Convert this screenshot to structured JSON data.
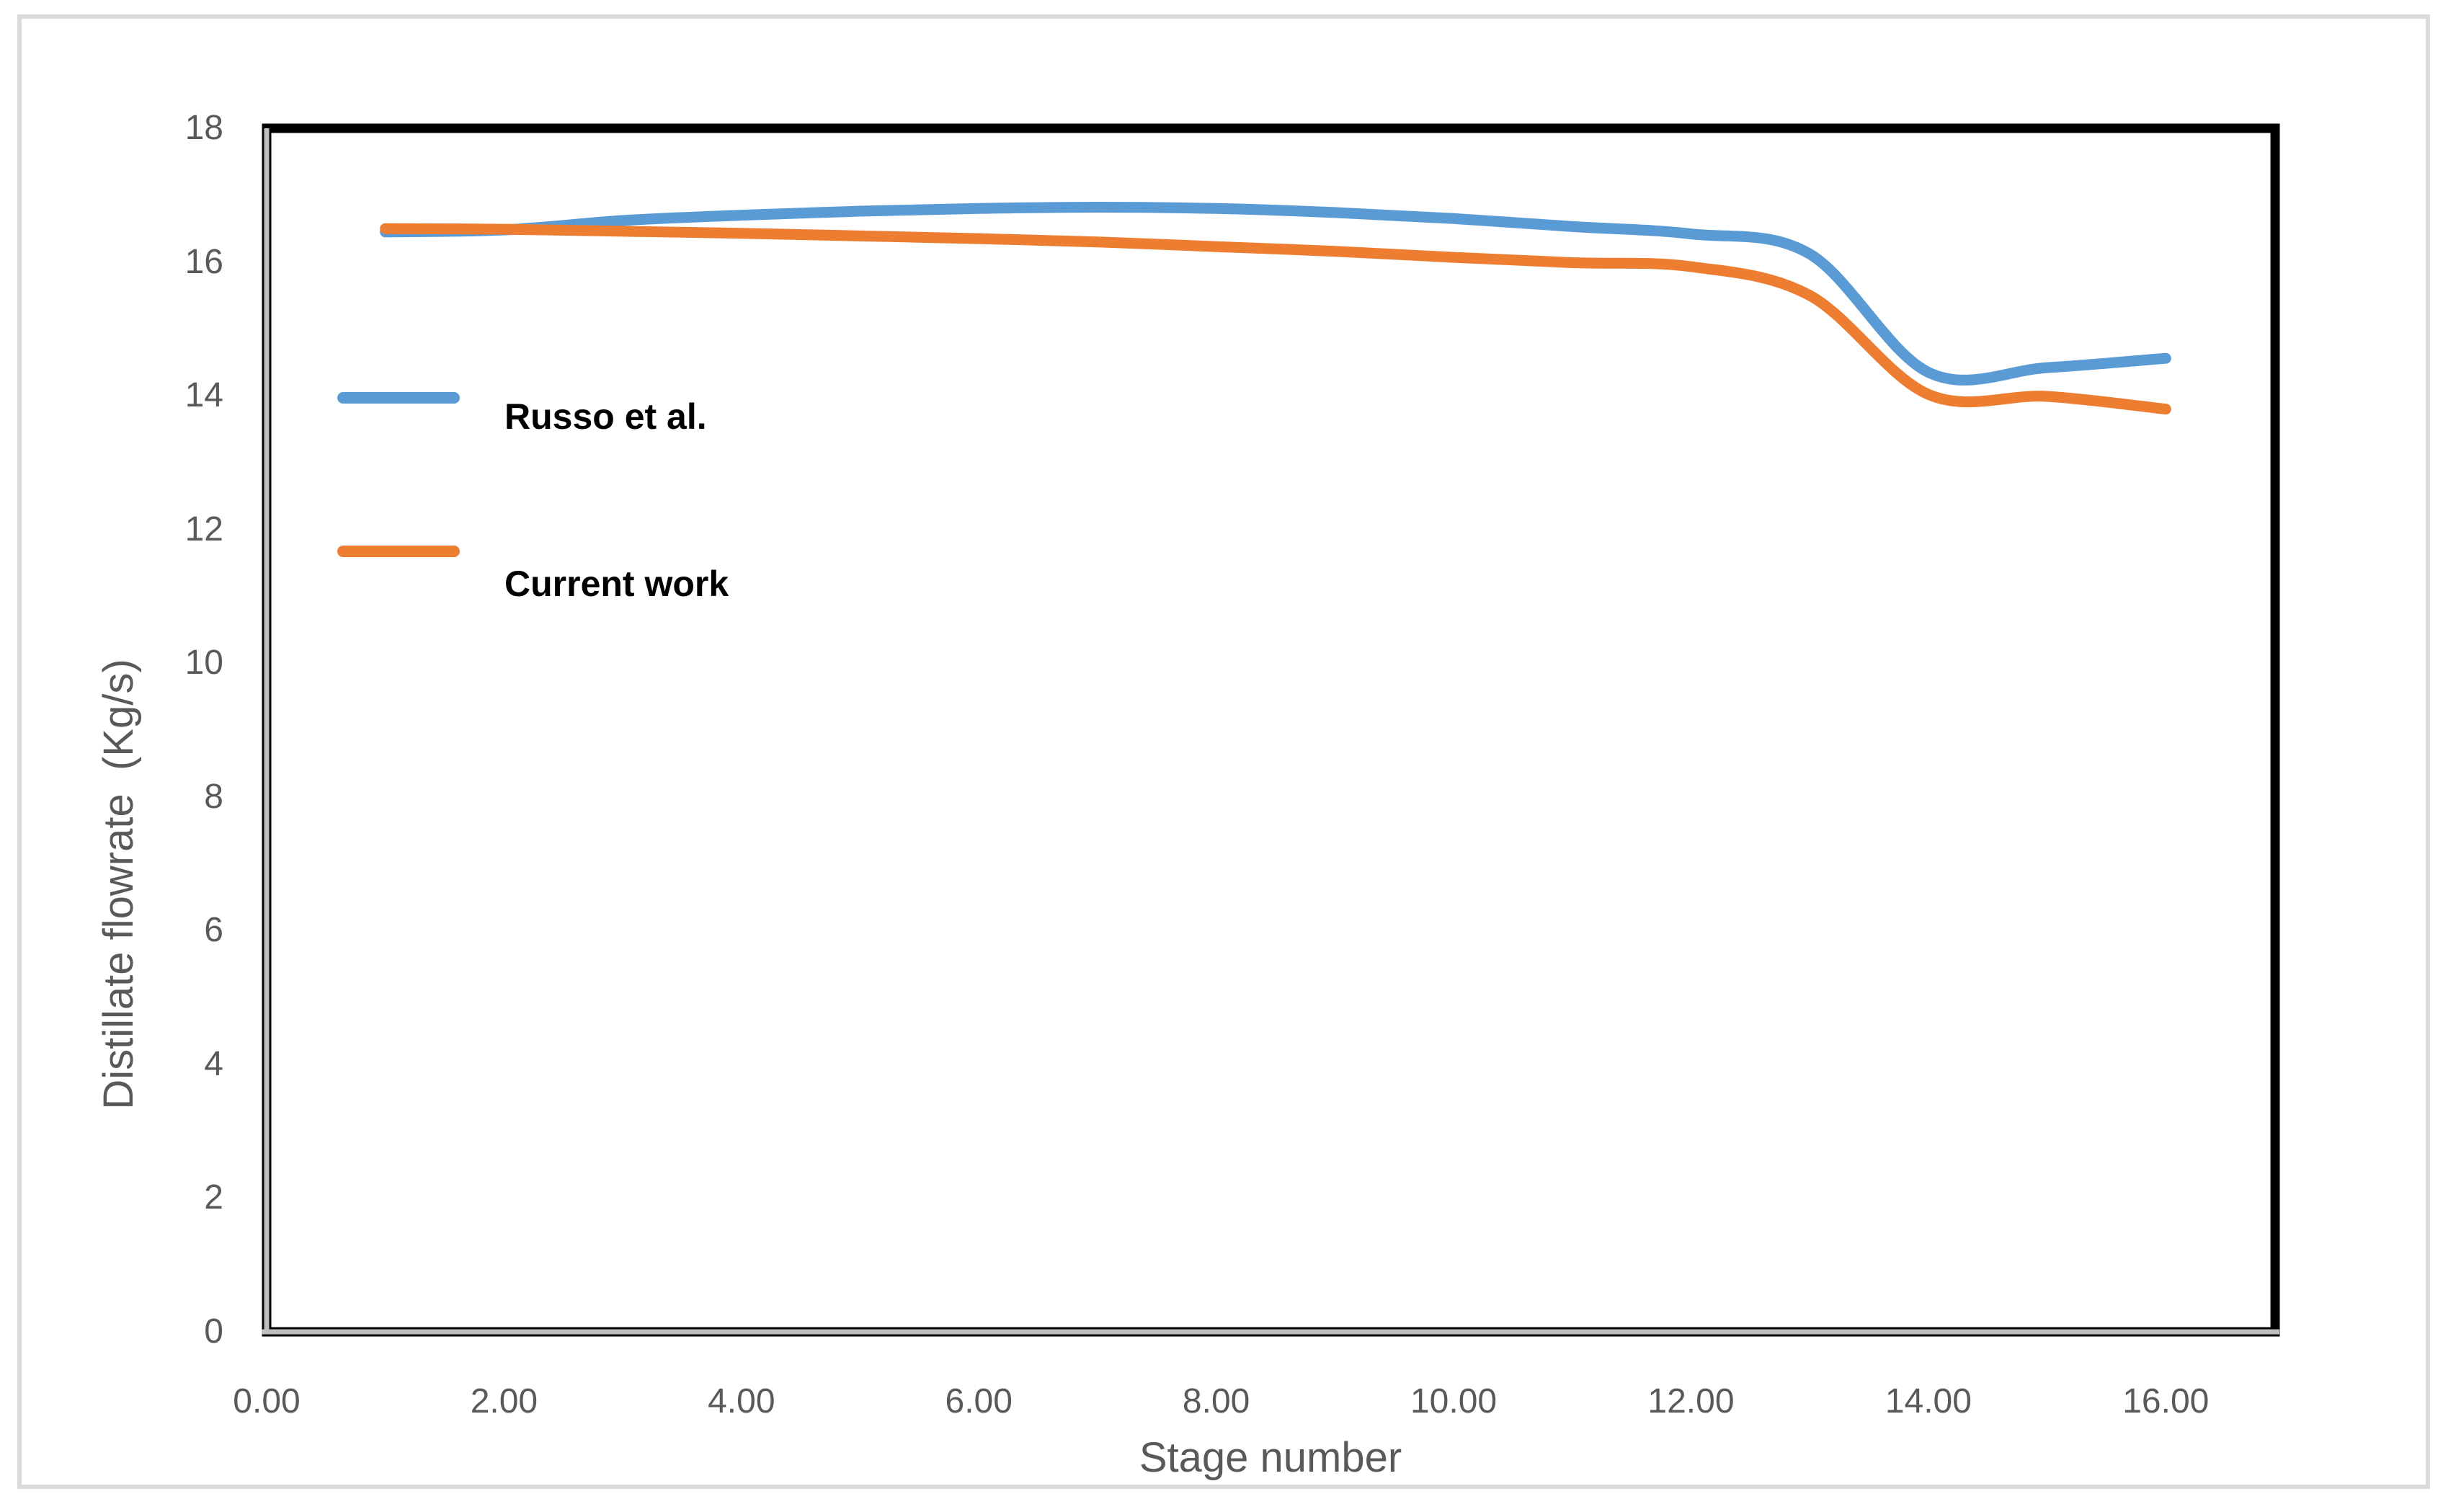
{
  "chart_data": {
    "type": "line",
    "title": "",
    "xlabel": "Stage number",
    "ylabel": "Distillate flowrate  (Kg/s)",
    "x": [
      1,
      2,
      3,
      4,
      5,
      6,
      7,
      8,
      9,
      10,
      11,
      12,
      13,
      14,
      15,
      16
    ],
    "series": [
      {
        "name": "Russo et al.",
        "color": "#5B9BD5",
        "values": [
          16.45,
          16.48,
          16.62,
          16.7,
          16.76,
          16.8,
          16.82,
          16.8,
          16.74,
          16.65,
          16.53,
          16.42,
          16.12,
          14.35,
          14.42,
          14.56
        ]
      },
      {
        "name": "Current work",
        "color": "#ED7D31",
        "values": [
          16.5,
          16.49,
          16.46,
          16.43,
          16.39,
          16.35,
          16.3,
          16.23,
          16.16,
          16.07,
          15.99,
          15.93,
          15.5,
          14.02,
          13.99,
          13.8
        ]
      }
    ],
    "xlim": [
      0,
      17
    ],
    "ylim": [
      0,
      18
    ],
    "xticks": [
      "0.00",
      "2.00",
      "4.00",
      "6.00",
      "8.00",
      "10.00",
      "12.00",
      "14.00",
      "16.00"
    ],
    "yticks": [
      "0",
      "2",
      "4",
      "6",
      "8",
      "10",
      "12",
      "14",
      "16",
      "18"
    ],
    "grid": false,
    "smooth": true,
    "legend_position": "inside-top-left"
  },
  "styles": {
    "tick_label_color": "#595959",
    "axis_title_color": "#595959",
    "plot_border_color": "#000000",
    "axis_line_color": "#BFBFBF",
    "outer_frame_color": "#DBDBDB",
    "legend_text_color": "#000000"
  }
}
